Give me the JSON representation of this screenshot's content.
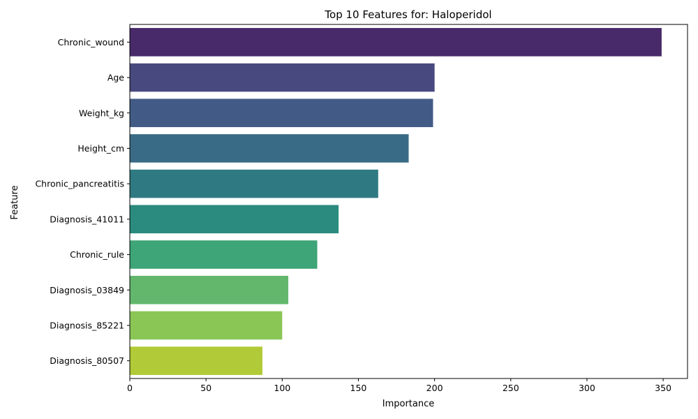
{
  "chart_data": {
    "type": "bar",
    "orientation": "horizontal",
    "title": "Top 10 Features for: Haloperidol",
    "xlabel": "Importance",
    "ylabel": "Feature",
    "xlim": [
      0,
      366
    ],
    "xticks": [
      0,
      50,
      100,
      150,
      200,
      250,
      300,
      350
    ],
    "grid": false,
    "categories": [
      "Chronic_wound",
      "Age",
      "Weight_kg",
      "Height_cm",
      "Chronic_pancreatitis",
      "Diagnosis_41011",
      "Chronic_rule",
      "Diagnosis_03849",
      "Diagnosis_85221",
      "Diagnosis_80507"
    ],
    "values": [
      349,
      200,
      199,
      183,
      163,
      137,
      123,
      104,
      100,
      87
    ],
    "colors": [
      "#482A6A",
      "#48497F",
      "#425B86",
      "#3A6B86",
      "#2F7A82",
      "#2A8B7E",
      "#3DA577",
      "#62B76D",
      "#8AC656",
      "#B1CA37"
    ]
  }
}
